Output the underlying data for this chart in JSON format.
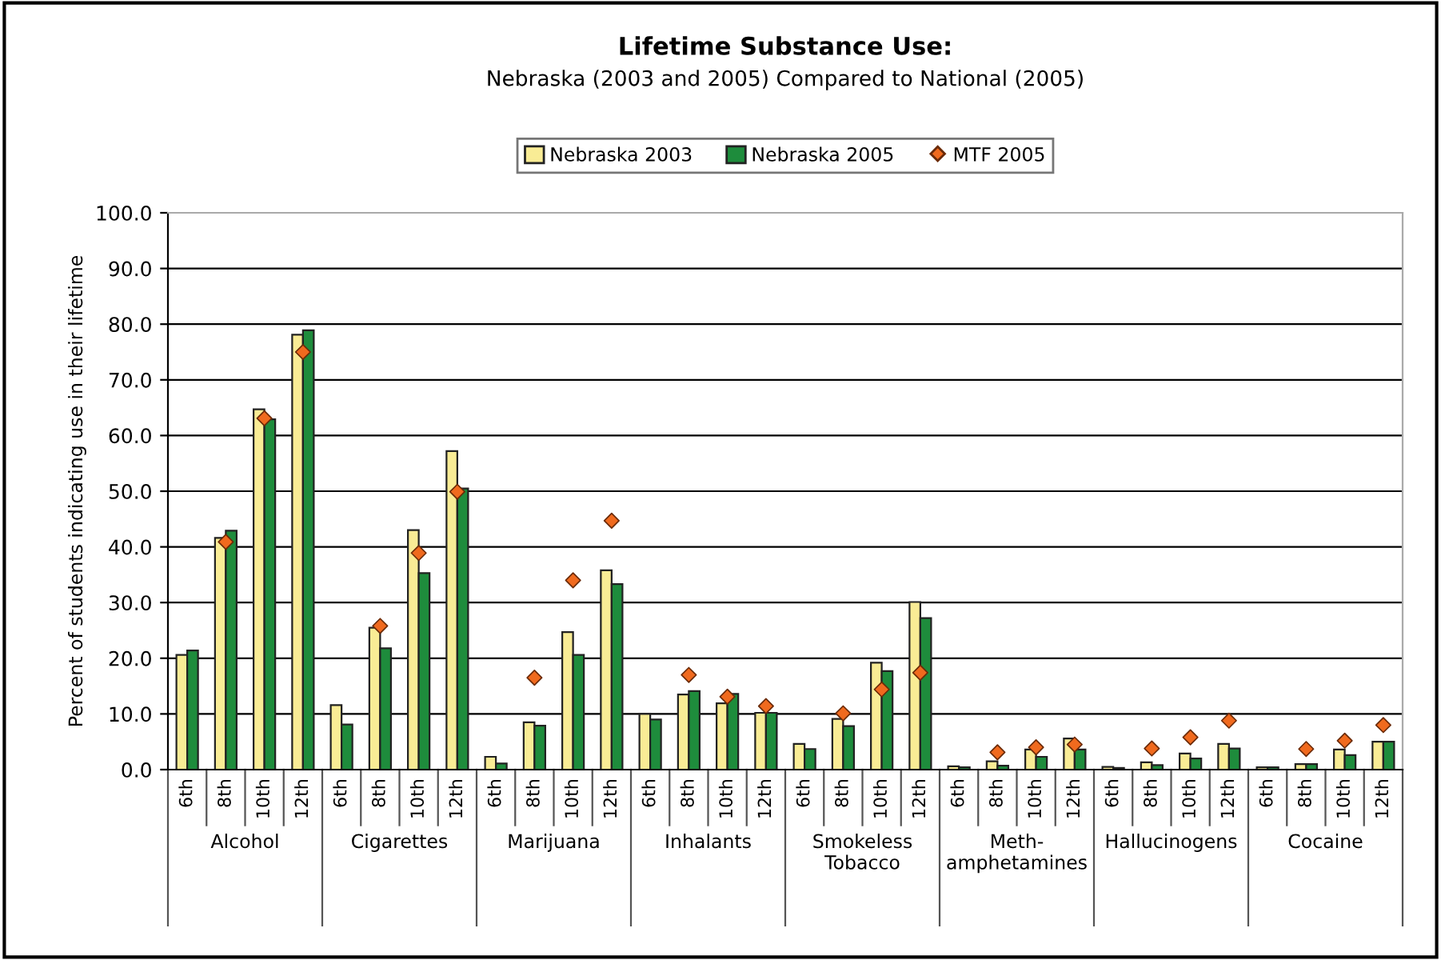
{
  "chart_data": {
    "type": "bar",
    "title": "Lifetime Substance Use:",
    "subtitle": "Nebraska (2003 and 2005) Compared to National (2005)",
    "ylabel": "Percent of students indicating use in their lifetime",
    "categories": [
      "6th",
      "8th",
      "10th",
      "12th",
      "6th",
      "8th",
      "10th",
      "12th",
      "6th",
      "8th",
      "10th",
      "12th",
      "6th",
      "8th",
      "10th",
      "12th",
      "6th",
      "8th",
      "10th",
      "12th",
      "6th",
      "8th",
      "10th",
      "12th",
      "6th",
      "8th",
      "10th",
      "12th",
      "6th",
      "8th",
      "10th",
      "12th"
    ],
    "annotations": [
      "Alcohol",
      "Cigarettes",
      "Marijuana",
      "Inhalants",
      "Smokeless\nTobacco",
      "Meth-\namphetamines",
      "Hallucinogens",
      "Cocaine"
    ],
    "series": [
      {
        "name": "Nebraska 2003",
        "color": "#f9ec95",
        "values": [
          20.6,
          41.6,
          64.7,
          78.1,
          11.6,
          25.5,
          43.0,
          57.2,
          2.3,
          8.5,
          24.7,
          35.8,
          10.0,
          13.5,
          11.9,
          10.2,
          4.6,
          9.1,
          19.2,
          30.1,
          0.6,
          1.5,
          3.6,
          5.6,
          0.5,
          1.3,
          2.9,
          4.6,
          0.4,
          1.0,
          3.6,
          5.0
        ]
      },
      {
        "name": "Nebraska 2005",
        "color": "#1e8c3c",
        "values": [
          21.4,
          42.9,
          62.9,
          78.9,
          8.1,
          21.8,
          35.3,
          50.5,
          1.1,
          7.9,
          20.6,
          33.3,
          9.0,
          14.1,
          13.6,
          10.2,
          3.7,
          7.8,
          17.7,
          27.2,
          0.4,
          0.7,
          2.3,
          3.6,
          0.3,
          0.8,
          2.0,
          3.8,
          0.4,
          1.0,
          2.6,
          5.0
        ]
      },
      {
        "name": "MTF 2005",
        "type": "scatter",
        "marker": "diamond",
        "color": "#f06a1e",
        "values": [
          null,
          40.9,
          63.1,
          75.0,
          null,
          25.8,
          38.9,
          49.9,
          null,
          16.5,
          34.0,
          44.7,
          null,
          17.0,
          13.1,
          11.4,
          null,
          10.1,
          14.4,
          17.4,
          null,
          3.1,
          4.0,
          4.5,
          null,
          3.8,
          5.8,
          8.8,
          null,
          3.7,
          5.2,
          8.0
        ]
      }
    ],
    "ylim": [
      0,
      100
    ],
    "yticks": [
      {
        "value": 0,
        "label": "0.0"
      },
      {
        "value": 10,
        "label": "10.0"
      },
      {
        "value": 20,
        "label": "20.0"
      },
      {
        "value": 30,
        "label": "30.0"
      },
      {
        "value": 40,
        "label": "40.0"
      },
      {
        "value": 50,
        "label": "50.0"
      },
      {
        "value": 60,
        "label": "60.0"
      },
      {
        "value": 70,
        "label": "70.0"
      },
      {
        "value": 80,
        "label": "80.0"
      },
      {
        "value": 90,
        "label": "90.0"
      },
      {
        "value": 100,
        "label": "100.0"
      }
    ],
    "grid": "y",
    "legend": "top"
  }
}
